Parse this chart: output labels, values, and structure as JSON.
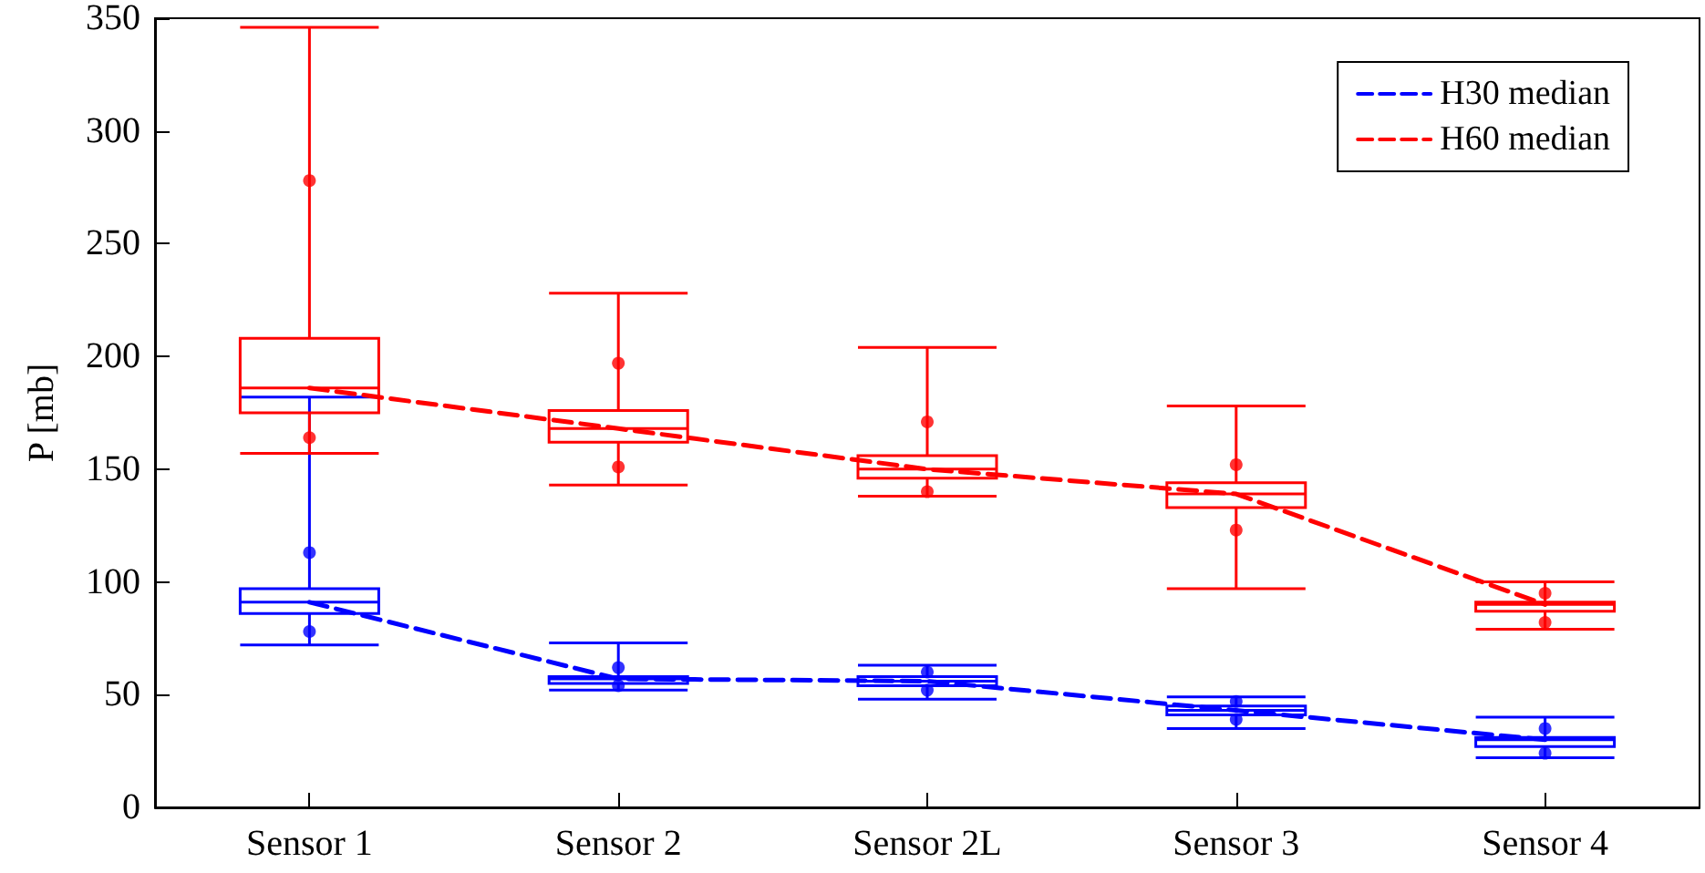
{
  "chart_data": {
    "type": "box",
    "ylabel": "P [mb]",
    "categories": [
      "Sensor 1",
      "Sensor 2",
      "Sensor 2L",
      "Sensor 3",
      "Sensor 4"
    ],
    "ylim": [
      0,
      350
    ],
    "yticks": [
      0,
      50,
      100,
      150,
      200,
      250,
      300,
      350
    ],
    "grid": false,
    "legend": "top right",
    "series": [
      {
        "type": "box",
        "color": "#0000ff",
        "boxes": [
          {
            "low": 72,
            "q1": 86,
            "median": 91,
            "q3": 97,
            "high": 182,
            "outliers": [
              113,
              78
            ]
          },
          {
            "low": 52,
            "q1": 55,
            "median": 57,
            "q3": 58,
            "high": 73,
            "outliers": [
              62,
              54
            ]
          },
          {
            "low": 48,
            "q1": 54,
            "median": 56,
            "q3": 58,
            "high": 63,
            "outliers": [
              60,
              52
            ]
          },
          {
            "low": 35,
            "q1": 41,
            "median": 43,
            "q3": 45,
            "high": 49,
            "outliers": [
              47,
              39
            ]
          },
          {
            "low": 22,
            "q1": 27,
            "median": 30,
            "q3": 31,
            "high": 40,
            "outliers": [
              35,
              24
            ]
          }
        ]
      },
      {
        "type": "box",
        "color": "#ff0000",
        "boxes": [
          {
            "low": 157,
            "q1": 175,
            "median": 186,
            "q3": 208,
            "high": 346,
            "outliers": [
              278,
              164
            ]
          },
          {
            "low": 143,
            "q1": 162,
            "median": 168,
            "q3": 176,
            "high": 228,
            "outliers": [
              197,
              151
            ]
          },
          {
            "low": 138,
            "q1": 146,
            "median": 150,
            "q3": 156,
            "high": 204,
            "outliers": [
              171,
              140
            ]
          },
          {
            "low": 97,
            "q1": 133,
            "median": 139,
            "q3": 144,
            "high": 178,
            "outliers": [
              152,
              123
            ]
          },
          {
            "low": 79,
            "q1": 87,
            "median": 90,
            "q3": 91,
            "high": 100,
            "outliers": [
              95,
              82
            ]
          }
        ]
      },
      {
        "type": "line",
        "name": "H30 median",
        "color": "#0000ff",
        "line_style": "dashed",
        "marker": "none",
        "values": [
          91,
          57,
          56,
          43,
          30
        ]
      },
      {
        "type": "line",
        "name": "H60 median",
        "color": "#ff0000",
        "line_style": "dashed",
        "marker": "none",
        "values": [
          186,
          168,
          150,
          139,
          90
        ]
      }
    ]
  }
}
